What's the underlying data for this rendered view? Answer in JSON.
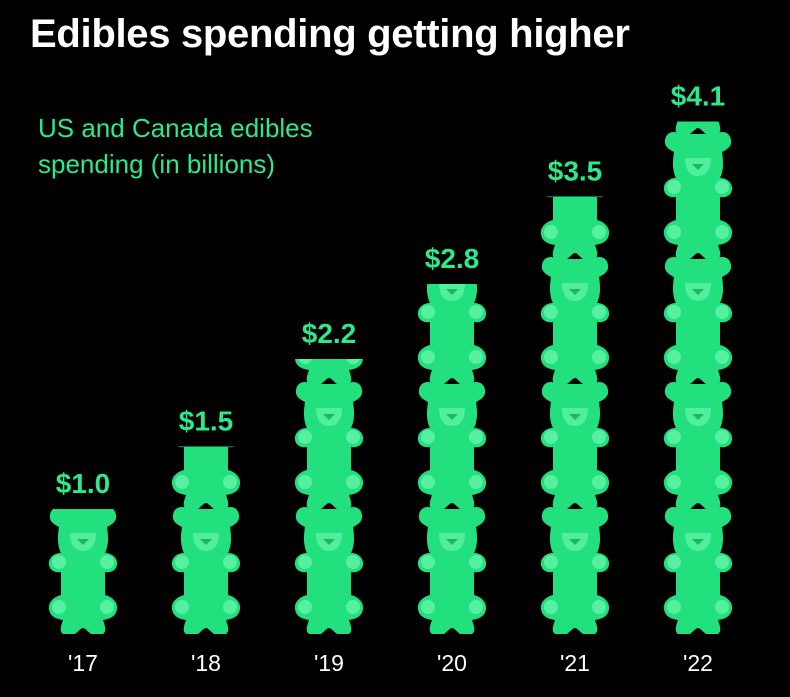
{
  "title": "Edibles spending getting higher",
  "subtitle": "US and Canada edibles spending (in billions)",
  "colors": {
    "background": "#000000",
    "title": "#ffffff",
    "accent": "#2ee88a",
    "bear": "#22e07d",
    "bear_detail": "#56f0a0",
    "tick_label": "#ffffff"
  },
  "chart_data": {
    "type": "bar",
    "title": "Edibles spending getting higher",
    "subtitle": "US and Canada edibles spending (in billions)",
    "categories": [
      "'17",
      "'18",
      "'19",
      "'20",
      "'21",
      "'22"
    ],
    "values": [
      1.0,
      1.5,
      2.2,
      2.8,
      3.5,
      4.1
    ],
    "data_labels": [
      "$1.0",
      "$1.5",
      "$2.2",
      "$2.8",
      "$3.5",
      "$4.1"
    ],
    "unit": "billions of US dollars",
    "mark": "stacked gummy bear icons, one bear per $1 billion",
    "xlabel": "",
    "ylabel": "",
    "ylim": [
      0,
      4.1
    ],
    "grid": false,
    "legend": "none"
  }
}
